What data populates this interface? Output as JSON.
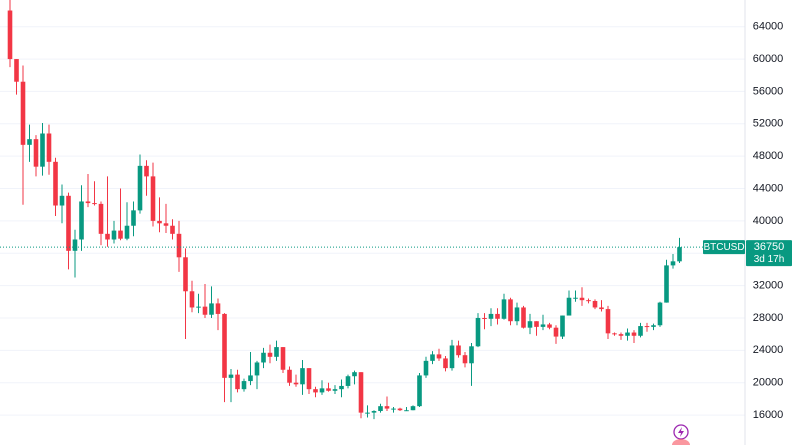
{
  "chart_data": {
    "type": "candlestick",
    "symbol": "BTCUSD",
    "countdown": "3d 17h",
    "up_color": "#089981",
    "down_color": "#f23645",
    "grid": true,
    "ylim": [
      12300,
      67300
    ],
    "yticks": [
      16000,
      20000,
      24000,
      28000,
      32000,
      36000,
      40000,
      44000,
      48000,
      52000,
      56000,
      60000,
      64000
    ],
    "open": [
      66000,
      60000,
      57200,
      49400,
      50100,
      46700,
      50800,
      47300,
      41900,
      43100,
      36300,
      37700,
      42400,
      42200,
      42100,
      38400,
      37700,
      38800,
      37800,
      39400,
      41300,
      46800,
      45500,
      40000,
      39700,
      39400,
      38400,
      35500,
      31300,
      29300,
      29400,
      28400,
      29800,
      28500,
      20600,
      21000,
      19200,
      20200,
      20900,
      22500,
      23700,
      23200,
      24400,
      21600,
      20000,
      19800,
      21800,
      19200,
      18800,
      19300,
      19000,
      19200,
      19600,
      20800,
      21300,
      16300,
      16300,
      16500,
      17100,
      16800,
      16800,
      16600,
      16600,
      17100,
      20900,
      22700,
      23500,
      23000,
      21800,
      24600,
      23400,
      22400,
      24500,
      28000,
      27900,
      28500,
      27900,
      30300,
      27600,
      29300,
      26800,
      27600,
      26900,
      27200,
      26800,
      25700,
      28300,
      30500,
      30500,
      30200,
      30100,
      29300,
      29100,
      26100,
      26000,
      25800,
      26200,
      25800,
      27000,
      26900,
      27100,
      29900,
      34500,
      35000
    ],
    "high": [
      69000,
      60000,
      59200,
      51900,
      50600,
      52100,
      51900,
      47800,
      44500,
      43500,
      38900,
      44400,
      45800,
      44900,
      42400,
      45500,
      40000,
      44000,
      42300,
      42400,
      48200,
      47500,
      47200,
      42900,
      42100,
      40200,
      40000,
      36600,
      32600,
      31000,
      32200,
      31900,
      30400,
      28600,
      21700,
      21600,
      20500,
      23800,
      22700,
      24300,
      24700,
      25200,
      24400,
      22000,
      21000,
      22800,
      21800,
      19500,
      20300,
      20000,
      19700,
      20400,
      21000,
      21500,
      21300,
      17200,
      16600,
      17400,
      18300,
      17000,
      16900,
      17000,
      17200,
      21200,
      23200,
      23900,
      24200,
      23300,
      25300,
      25200,
      23800,
      24900,
      28600,
      28600,
      29200,
      29200,
      31000,
      30500,
      29900,
      29500,
      28500,
      27600,
      28400,
      27400,
      27100,
      28300,
      31400,
      31400,
      31800,
      30400,
      30300,
      30200,
      29500,
      26200,
      26200,
      26700,
      26500,
      27400,
      27400,
      27300,
      30000,
      35200,
      35900,
      37900
    ],
    "low": [
      59000,
      55600,
      42000,
      47300,
      45500,
      45600,
      45700,
      40600,
      39700,
      34000,
      33000,
      36300,
      41700,
      41900,
      37000,
      36800,
      37200,
      37600,
      37600,
      38100,
      40900,
      43100,
      39300,
      38600,
      38500,
      37700,
      33700,
      25400,
      28700,
      28600,
      28000,
      28000,
      26500,
      17600,
      17600,
      18800,
      18900,
      19700,
      19200,
      21800,
      22400,
      22700,
      21200,
      19600,
      19500,
      18500,
      18600,
      18200,
      18500,
      18900,
      18600,
      18200,
      19300,
      19800,
      15600,
      15700,
      15500,
      16300,
      16500,
      16300,
      16500,
      16500,
      16600,
      17000,
      20600,
      22300,
      22700,
      21400,
      21500,
      23100,
      21900,
      19600,
      24400,
      26600,
      27000,
      27200,
      27800,
      27100,
      27100,
      26700,
      26000,
      25800,
      26500,
      26600,
      24800,
      25400,
      28300,
      30000,
      29500,
      29800,
      29100,
      28800,
      25400,
      25800,
      25300,
      25200,
      24900,
      25600,
      26300,
      26500,
      26900,
      29900,
      34100,
      34800
    ],
    "close": [
      60000,
      57200,
      49400,
      50100,
      46700,
      50800,
      47300,
      41900,
      43100,
      36300,
      37700,
      42400,
      42200,
      42100,
      38400,
      37700,
      38800,
      37800,
      39400,
      41300,
      46800,
      45500,
      40000,
      39700,
      39400,
      38400,
      35500,
      31300,
      29300,
      29400,
      28400,
      29800,
      28500,
      20600,
      21000,
      19200,
      20200,
      20900,
      22500,
      23700,
      23200,
      24400,
      21600,
      20000,
      19800,
      21800,
      19200,
      18800,
      19300,
      19000,
      19200,
      19600,
      20800,
      21300,
      16300,
      16300,
      16500,
      17100,
      16800,
      16800,
      16600,
      16600,
      17100,
      20900,
      22700,
      23500,
      23000,
      21800,
      24600,
      23400,
      22400,
      24500,
      28000,
      27900,
      28500,
      27900,
      30300,
      27600,
      29300,
      26800,
      27600,
      26900,
      27200,
      26800,
      25700,
      28300,
      30500,
      30500,
      30200,
      30100,
      29300,
      29100,
      26100,
      26000,
      25800,
      26200,
      25800,
      27000,
      26900,
      27100,
      29900,
      34500,
      35000,
      36750
    ]
  }
}
